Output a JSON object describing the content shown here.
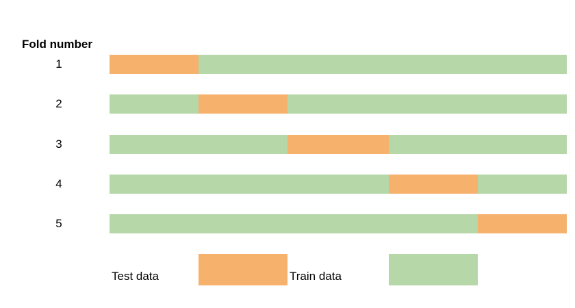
{
  "header": "Fold number",
  "colors": {
    "test": "#F6B16D",
    "train": "#B6D7A8"
  },
  "folds": [
    {
      "label": "1",
      "segments": [
        {
          "kind": "test",
          "frac": 0.1946
        },
        {
          "kind": "train",
          "frac": 0.8054
        }
      ]
    },
    {
      "label": "2",
      "segments": [
        {
          "kind": "train",
          "frac": 0.1946
        },
        {
          "kind": "test",
          "frac": 0.1946
        },
        {
          "kind": "train",
          "frac": 0.6108
        }
      ]
    },
    {
      "label": "3",
      "segments": [
        {
          "kind": "train",
          "frac": 0.3892
        },
        {
          "kind": "test",
          "frac": 0.2216
        },
        {
          "kind": "train",
          "frac": 0.3892
        }
      ]
    },
    {
      "label": "4",
      "segments": [
        {
          "kind": "train",
          "frac": 0.6108
        },
        {
          "kind": "test",
          "frac": 0.1946
        },
        {
          "kind": "train",
          "frac": 0.1946
        }
      ]
    },
    {
      "label": "5",
      "segments": [
        {
          "kind": "train",
          "frac": 0.8054
        },
        {
          "kind": "test",
          "frac": 0.1946
        }
      ]
    }
  ],
  "legend": {
    "test_label": "Test data",
    "train_label": "Train data"
  }
}
